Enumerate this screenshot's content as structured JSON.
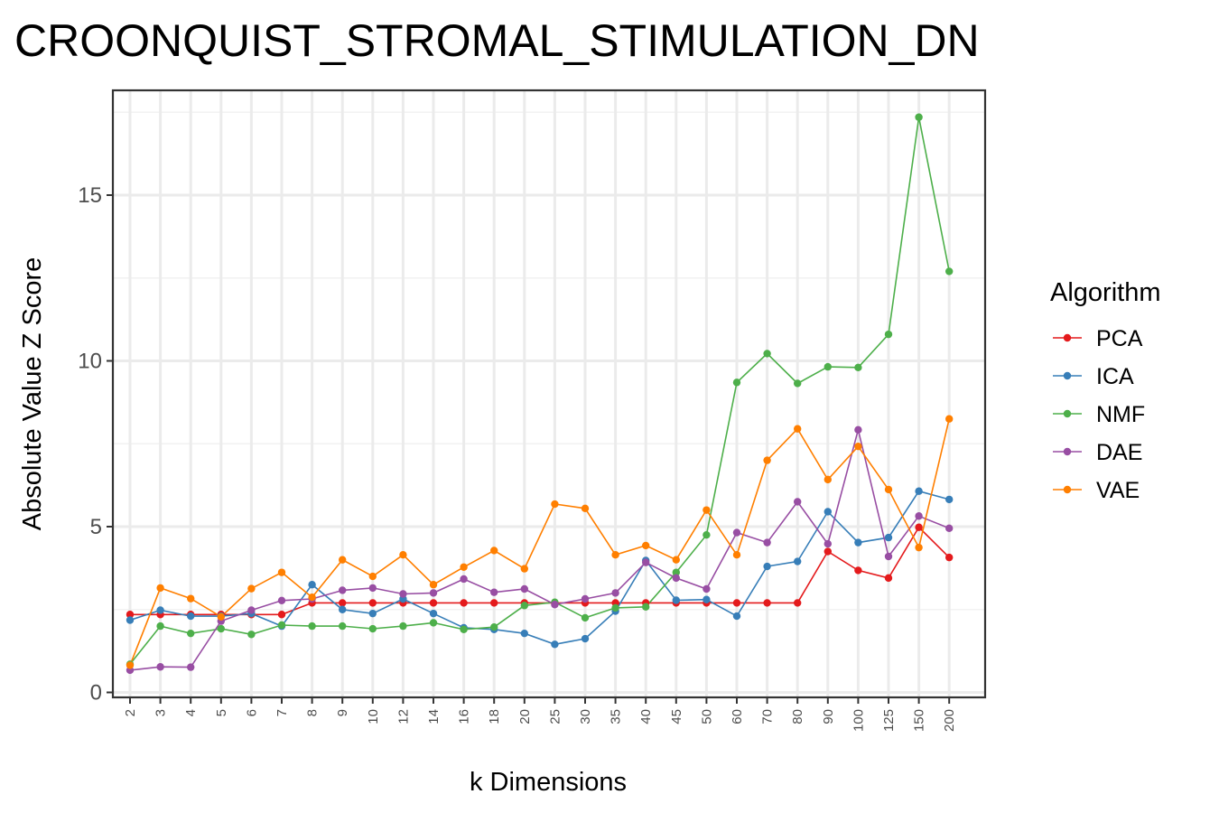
{
  "chart_data": {
    "type": "line",
    "title": "CROONQUIST_STROMAL_STIMULATION_DN",
    "xlabel": "k Dimensions",
    "ylabel": "Absolute Value Z Score",
    "categories": [
      "2",
      "3",
      "4",
      "5",
      "6",
      "7",
      "8",
      "9",
      "10",
      "12",
      "14",
      "16",
      "18",
      "20",
      "25",
      "30",
      "35",
      "40",
      "45",
      "50",
      "60",
      "70",
      "80",
      "90",
      "100",
      "125",
      "150",
      "200"
    ],
    "ylim": [
      0,
      18
    ],
    "yticks": [
      0,
      5,
      10,
      15
    ],
    "grid": true,
    "legend": {
      "title": "Algorithm",
      "position": "right"
    },
    "series": [
      {
        "name": "PCA",
        "color": "#e41a1c",
        "values": [
          2.35,
          2.35,
          2.35,
          2.35,
          2.35,
          2.35,
          2.7,
          2.7,
          2.7,
          2.7,
          2.7,
          2.7,
          2.7,
          2.7,
          2.7,
          2.7,
          2.7,
          2.7,
          2.7,
          2.7,
          2.7,
          2.7,
          2.7,
          4.25,
          3.68,
          3.45,
          4.98,
          4.07
        ]
      },
      {
        "name": "ICA",
        "color": "#377eb8",
        "values": [
          2.18,
          2.48,
          2.3,
          2.3,
          2.38,
          2.0,
          3.25,
          2.5,
          2.38,
          2.82,
          2.38,
          1.95,
          1.9,
          1.78,
          1.45,
          1.62,
          2.45,
          3.98,
          2.78,
          2.8,
          2.3,
          3.8,
          3.95,
          5.45,
          4.52,
          4.67,
          6.07,
          5.82
        ]
      },
      {
        "name": "NMF",
        "color": "#4daf4a",
        "values": [
          0.85,
          2.0,
          1.78,
          1.92,
          1.75,
          2.03,
          2.0,
          2.0,
          1.92,
          2.0,
          2.1,
          1.9,
          1.97,
          2.62,
          2.72,
          2.25,
          2.55,
          2.58,
          3.62,
          4.75,
          9.35,
          10.22,
          9.32,
          9.82,
          9.8,
          10.8,
          17.35,
          12.7
        ]
      },
      {
        "name": "DAE",
        "color": "#984ea3",
        "values": [
          0.67,
          0.77,
          0.76,
          2.15,
          2.48,
          2.77,
          2.82,
          3.08,
          3.15,
          2.97,
          3.0,
          3.42,
          3.02,
          3.12,
          2.65,
          2.82,
          3.0,
          3.92,
          3.45,
          3.12,
          4.82,
          4.52,
          5.75,
          4.48,
          7.92,
          4.1,
          5.32,
          4.95
        ]
      },
      {
        "name": "VAE",
        "color": "#ff7f00",
        "values": [
          0.82,
          3.15,
          2.83,
          2.28,
          3.13,
          3.62,
          2.87,
          4.0,
          3.5,
          4.15,
          3.25,
          3.78,
          4.28,
          3.73,
          5.68,
          5.55,
          4.15,
          4.43,
          4.0,
          5.5,
          4.15,
          7.0,
          7.95,
          6.42,
          7.42,
          6.12,
          4.37,
          8.25
        ]
      }
    ]
  }
}
